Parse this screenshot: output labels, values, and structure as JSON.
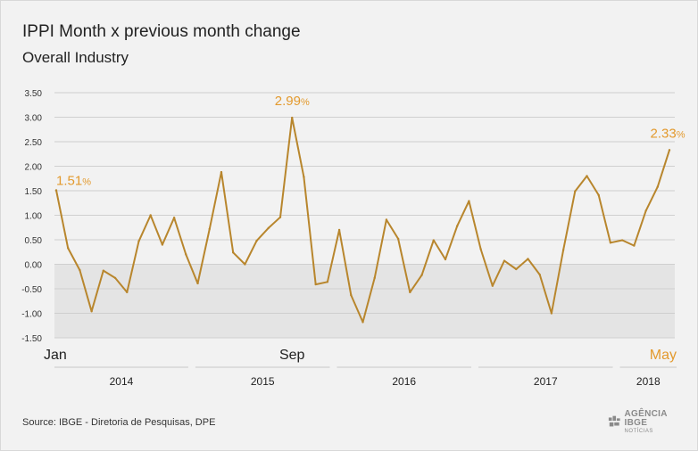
{
  "header": {
    "title": "IPPI Month x previous month change",
    "subtitle": "Overall Industry"
  },
  "footer": {
    "source": "Source: IBGE - Diretoria de Pesquisas, DPE",
    "logo_main": "AGÊNCIA IBGE",
    "logo_sub": "NOTÍCIAS"
  },
  "colors": {
    "line": "#B8862D",
    "highlight_text": "#E39A2E",
    "negative_band": "#e4e4e4",
    "grid": "#cfcfcf",
    "text": "#222222"
  },
  "chart_data": {
    "type": "line",
    "title": "IPPI Month x previous month change",
    "subtitle": "Overall Industry",
    "xlabel": "",
    "ylabel": "",
    "ylim": [
      -1.5,
      3.5
    ],
    "yticks": [
      "3.50",
      "3.00",
      "2.50",
      "2.00",
      "1.50",
      "1.00",
      "0.50",
      "0.00",
      "-0.50",
      "-1.00",
      "-1.50"
    ],
    "grid": true,
    "negative_band": true,
    "x": [
      "2014-01",
      "2014-02",
      "2014-03",
      "2014-04",
      "2014-05",
      "2014-06",
      "2014-07",
      "2014-08",
      "2014-09",
      "2014-10",
      "2014-11",
      "2014-12",
      "2015-01",
      "2015-02",
      "2015-03",
      "2015-04",
      "2015-05",
      "2015-06",
      "2015-07",
      "2015-08",
      "2015-09",
      "2015-10",
      "2015-11",
      "2015-12",
      "2016-01",
      "2016-02",
      "2016-03",
      "2016-04",
      "2016-05",
      "2016-06",
      "2016-07",
      "2016-08",
      "2016-09",
      "2016-10",
      "2016-11",
      "2016-12",
      "2017-01",
      "2017-02",
      "2017-03",
      "2017-04",
      "2017-05",
      "2017-06",
      "2017-07",
      "2017-08",
      "2017-09",
      "2017-10",
      "2017-11",
      "2017-12",
      "2018-01",
      "2018-02",
      "2018-03",
      "2018-04",
      "2018-05"
    ],
    "series": [
      {
        "values": [
          1.51,
          0.33,
          -0.12,
          -0.96,
          -0.13,
          -0.28,
          -0.57,
          0.47,
          1.0,
          0.4,
          0.95,
          0.2,
          -0.39,
          0.72,
          1.88,
          0.24,
          0.0,
          0.48,
          0.74,
          0.96,
          2.99,
          1.78,
          -0.41,
          -0.36,
          0.7,
          -0.63,
          -1.18,
          -0.28,
          0.91,
          0.52,
          -0.57,
          -0.22,
          0.49,
          0.1,
          0.78,
          1.29,
          0.31,
          -0.44,
          0.07,
          -0.1,
          0.11,
          -0.21,
          -1.0,
          0.29,
          1.49,
          1.8,
          1.41,
          0.44,
          0.49,
          0.38,
          1.09,
          1.58,
          2.33
        ]
      }
    ],
    "point_labels": [
      {
        "x": "2014-01",
        "value": "1.51",
        "unit": "%"
      },
      {
        "x": "2015-09",
        "value": "2.99",
        "unit": "%"
      },
      {
        "x": "2018-05",
        "value": "2.33",
        "unit": "%"
      }
    ],
    "month_labels": [
      {
        "x": "2014-01",
        "text": "Jan",
        "highlight": false
      },
      {
        "x": "2015-09",
        "text": "Sep",
        "highlight": false
      },
      {
        "x": "2018-05",
        "text": "May",
        "highlight": true
      }
    ],
    "year_labels": [
      "2014",
      "2015",
      "2016",
      "2017",
      "2018"
    ]
  }
}
